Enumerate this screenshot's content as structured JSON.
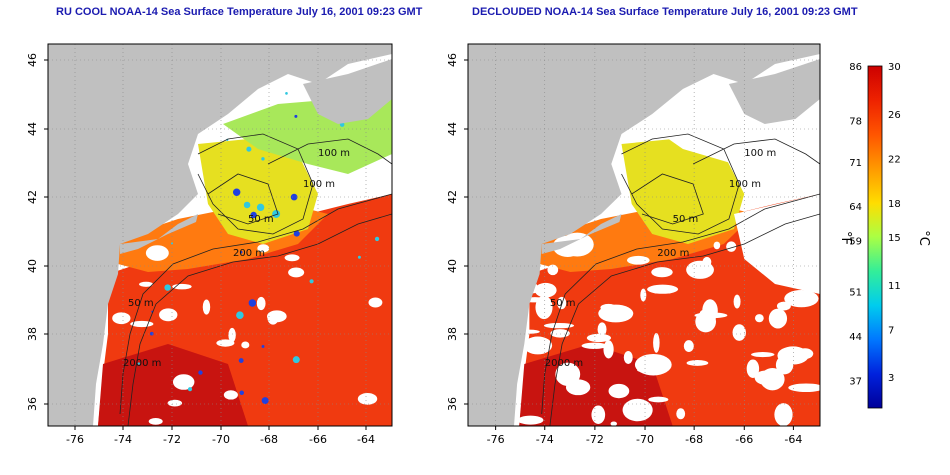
{
  "panels": [
    {
      "title": "RU COOL NOAA-14 Sea Surface Temperature July 16, 2001 09:23 GMT",
      "x_ticks": [
        "-76",
        "-74",
        "-72",
        "-70",
        "-68",
        "-66",
        "-64"
      ],
      "y_ticks": [
        "36",
        "38",
        "40",
        "42",
        "44",
        "46"
      ],
      "contour_labels": [
        "100 m",
        "100 m",
        "50 m",
        "200 m",
        "50 m",
        "2000 m"
      ]
    },
    {
      "title": "DECLOUDED NOAA-14 Sea Surface Temperature July 16, 2001 09:23 GMT",
      "x_ticks": [
        "-76",
        "-74",
        "-72",
        "-70",
        "-68",
        "-66",
        "-64"
      ],
      "y_ticks": [
        "36",
        "38",
        "40",
        "42",
        "44",
        "46"
      ],
      "contour_labels": [
        "100 m",
        "100 m",
        "50 m",
        "200 m",
        "50 m",
        "2000 m"
      ]
    }
  ],
  "colorbar": {
    "f_label": "°F",
    "c_label": "°C",
    "f_ticks": [
      "86",
      "78",
      "71",
      "64",
      "59",
      "51",
      "44",
      "37"
    ],
    "c_ticks": [
      "30",
      "26",
      "22",
      "18",
      "15",
      "11",
      "7",
      "3"
    ],
    "stops": [
      "#cc0000",
      "#ee2200",
      "#ff5500",
      "#ff9900",
      "#ffdd00",
      "#aaff44",
      "#33ee99",
      "#00ccee",
      "#0077ff",
      "#0022dd",
      "#000099"
    ]
  },
  "colors": {
    "land": "#c0c0c0",
    "cloud": "#ffffff",
    "ocean_warm": "#f03a10",
    "ocean_deep": "#c81410",
    "ocean_mid": "#ff7a10",
    "ocean_cool": "#e6e020",
    "ocean_cold": "#30c8e0",
    "contour": "#222222",
    "title_text": "#1b1bb0"
  }
}
